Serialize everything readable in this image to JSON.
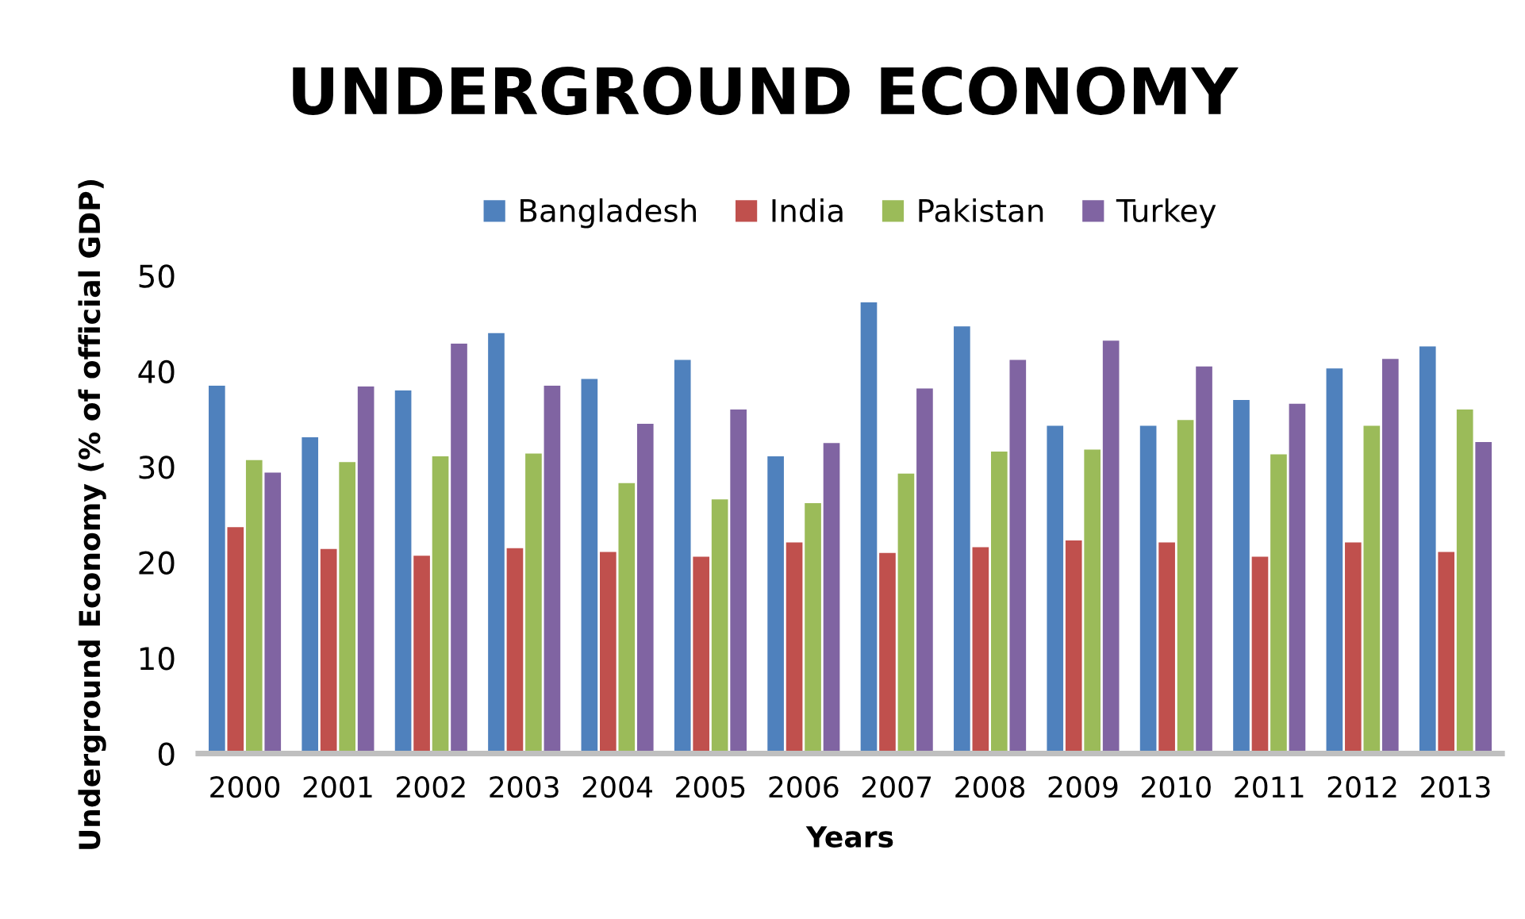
{
  "chart_data": {
    "type": "bar",
    "title": "UNDERGROUND ECONOMY",
    "xlabel": "Years",
    "ylabel": "Underground Economy (% of official GDP)",
    "categories": [
      "2000",
      "2001",
      "2002",
      "2003",
      "2004",
      "2005",
      "2006",
      "2007",
      "2008",
      "2009",
      "2010",
      "2011",
      "2012",
      "2013"
    ],
    "series": [
      {
        "name": "Bangladesh",
        "color": "#4f81bd",
        "values": [
          38.5,
          33.1,
          38.0,
          44.0,
          39.2,
          41.2,
          31.1,
          47.2,
          44.7,
          34.3,
          34.3,
          37.0,
          40.3,
          42.6
        ]
      },
      {
        "name": "India",
        "color": "#c0504d",
        "values": [
          23.7,
          21.4,
          20.7,
          21.5,
          21.1,
          20.6,
          22.1,
          21.0,
          21.6,
          22.3,
          22.1,
          20.6,
          22.1,
          21.1
        ]
      },
      {
        "name": "Pakistan",
        "color": "#9bbb59",
        "values": [
          30.7,
          30.5,
          31.1,
          31.4,
          28.3,
          26.6,
          26.2,
          29.3,
          31.6,
          31.8,
          34.9,
          31.3,
          34.3,
          36.0
        ]
      },
      {
        "name": "Turkey",
        "color": "#8064a2",
        "values": [
          29.4,
          38.4,
          42.9,
          38.5,
          34.5,
          36.0,
          32.5,
          38.2,
          41.2,
          43.2,
          40.5,
          36.6,
          41.3,
          32.6
        ]
      }
    ],
    "ylim": [
      0,
      50
    ],
    "yticks": [
      0,
      10,
      20,
      30,
      40,
      50
    ],
    "grid": false,
    "legend": "top"
  }
}
